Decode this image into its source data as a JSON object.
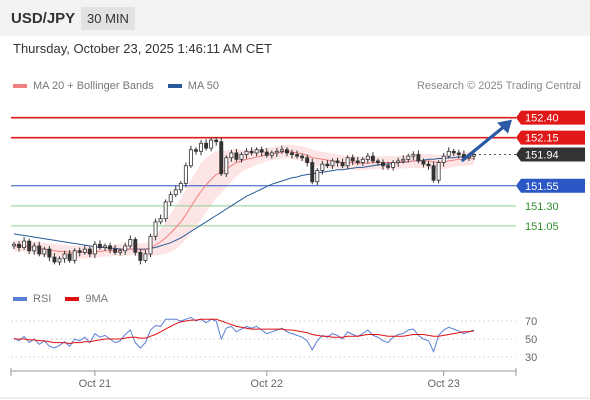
{
  "header": {
    "symbol": "USD/JPY",
    "timeframe": "30 MIN"
  },
  "datetime": "Thursday, October 23, 2025 1:46:11 AM CET",
  "legend": {
    "items": [
      {
        "label": "MA 20 + Bollinger Bands",
        "color": "#f08080"
      },
      {
        "label": "MA 50",
        "color": "#2a5a9a"
      }
    ],
    "credit": "Research © 2025 Trading Central"
  },
  "rsi_legend": {
    "items": [
      {
        "label": "RSI",
        "color": "#5b7fd6"
      },
      {
        "label": "9MA",
        "color": "#e01010"
      }
    ]
  },
  "chart_data": [
    {
      "type": "candlestick",
      "ylim": [
        150.4,
        152.62
      ],
      "x_labels": [
        {
          "label": "Oct 21",
          "index": 16
        },
        {
          "label": "Oct 22",
          "index": 50
        },
        {
          "label": "Oct 23",
          "index": 85
        }
      ],
      "levels": [
        {
          "value": 152.4,
          "label": "152.40",
          "kind": "resistance"
        },
        {
          "value": 152.15,
          "label": "152.15",
          "kind": "resistance"
        },
        {
          "value": 151.94,
          "label": "151.94",
          "kind": "last"
        },
        {
          "value": 151.55,
          "label": "151.55",
          "kind": "pivot"
        },
        {
          "value": 151.3,
          "label": "151.30",
          "kind": "support"
        },
        {
          "value": 151.05,
          "label": "151.05",
          "kind": "support"
        }
      ],
      "arrow": {
        "from": [
          151.87,
          88
        ],
        "to": [
          152.4,
          96
        ]
      },
      "close": [
        150.82,
        150.78,
        150.86,
        150.74,
        150.8,
        150.7,
        150.76,
        150.66,
        150.6,
        150.64,
        150.7,
        150.62,
        150.74,
        150.72,
        150.76,
        150.7,
        150.82,
        150.78,
        150.8,
        150.76,
        150.72,
        150.74,
        150.8,
        150.88,
        150.72,
        150.62,
        150.7,
        150.92,
        151.1,
        151.14,
        151.35,
        151.44,
        151.5,
        151.58,
        151.8,
        152.0,
        151.98,
        152.08,
        152.02,
        152.12,
        152.1,
        151.7,
        151.9,
        151.96,
        151.88,
        151.94,
        151.98,
        151.96,
        152.0,
        151.97,
        151.93,
        151.96,
        151.98,
        152.0,
        151.96,
        151.94,
        151.92,
        151.9,
        151.84,
        151.6,
        151.74,
        151.82,
        151.8,
        151.86,
        151.84,
        151.8,
        151.9,
        151.86,
        151.84,
        151.88,
        151.92,
        151.86,
        151.84,
        151.8,
        151.78,
        151.84,
        151.86,
        151.88,
        151.92,
        151.94,
        151.86,
        151.82,
        151.8,
        151.62,
        151.84,
        151.92,
        151.98,
        151.96,
        151.94,
        151.9,
        151.92,
        151.94
      ],
      "ma20": [
        150.8,
        150.8,
        150.8,
        150.79,
        150.78,
        150.77,
        150.76,
        150.75,
        150.74,
        150.73,
        150.73,
        150.72,
        150.72,
        150.72,
        150.72,
        150.72,
        150.73,
        150.73,
        150.74,
        150.74,
        150.75,
        150.75,
        150.75,
        150.76,
        150.76,
        150.75,
        150.75,
        150.77,
        150.81,
        150.85,
        150.9,
        150.96,
        151.03,
        151.1,
        151.19,
        151.29,
        151.39,
        151.48,
        151.56,
        151.63,
        151.69,
        151.72,
        151.76,
        151.8,
        151.84,
        151.86,
        151.88,
        151.89,
        151.91,
        151.92,
        151.94,
        151.95,
        151.96,
        151.97,
        151.98,
        151.97,
        151.96,
        151.95,
        151.93,
        151.9,
        151.89,
        151.88,
        151.87,
        151.86,
        151.85,
        151.84,
        151.84,
        151.84,
        151.83,
        151.83,
        151.83,
        151.84,
        151.84,
        151.84,
        151.84,
        151.84,
        151.84,
        151.85,
        151.85,
        151.86,
        151.86,
        151.86,
        151.86,
        151.85,
        151.84,
        151.85,
        151.86,
        151.87,
        151.88,
        151.88,
        151.89,
        151.89
      ],
      "ma50": [
        150.95,
        150.94,
        150.93,
        150.92,
        150.91,
        150.9,
        150.89,
        150.88,
        150.87,
        150.86,
        150.85,
        150.84,
        150.83,
        150.82,
        150.81,
        150.8,
        150.79,
        150.78,
        150.78,
        150.77,
        150.77,
        150.76,
        150.76,
        150.76,
        150.76,
        150.76,
        150.76,
        150.77,
        150.78,
        150.8,
        150.82,
        150.84,
        150.87,
        150.9,
        150.94,
        150.98,
        151.02,
        151.06,
        151.1,
        151.14,
        151.18,
        151.22,
        151.26,
        151.3,
        151.34,
        151.38,
        151.42,
        151.45,
        151.48,
        151.51,
        151.54,
        151.57,
        151.59,
        151.61,
        151.63,
        151.65,
        151.66,
        151.68,
        151.69,
        151.7,
        151.71,
        151.72,
        151.73,
        151.74,
        151.75,
        151.75,
        151.76,
        151.77,
        151.78,
        151.78,
        151.79,
        151.8,
        151.81,
        151.82,
        151.82,
        151.83,
        151.84,
        151.84,
        151.85,
        151.86,
        151.86,
        151.87,
        151.88,
        151.88,
        151.89,
        151.89,
        151.9,
        151.9,
        151.91,
        151.91,
        151.92,
        151.92
      ],
      "bb_width": [
        0.14,
        0.14,
        0.14,
        0.15,
        0.15,
        0.16,
        0.16,
        0.16,
        0.17,
        0.17,
        0.17,
        0.16,
        0.16,
        0.16,
        0.15,
        0.15,
        0.15,
        0.14,
        0.14,
        0.14,
        0.14,
        0.14,
        0.14,
        0.15,
        0.15,
        0.16,
        0.17,
        0.2,
        0.26,
        0.32,
        0.4,
        0.48,
        0.54,
        0.58,
        0.62,
        0.66,
        0.68,
        0.7,
        0.68,
        0.64,
        0.58,
        0.52,
        0.46,
        0.4,
        0.34,
        0.28,
        0.24,
        0.22,
        0.2,
        0.18,
        0.17,
        0.16,
        0.16,
        0.16,
        0.17,
        0.18,
        0.18,
        0.19,
        0.19,
        0.2,
        0.2,
        0.19,
        0.19,
        0.18,
        0.18,
        0.18,
        0.17,
        0.17,
        0.17,
        0.17,
        0.16,
        0.16,
        0.16,
        0.16,
        0.16,
        0.16,
        0.16,
        0.16,
        0.17,
        0.17,
        0.18,
        0.18,
        0.18,
        0.19,
        0.19,
        0.18,
        0.18,
        0.17,
        0.17,
        0.17,
        0.17,
        0.17
      ]
    },
    {
      "type": "line",
      "name": "RSI",
      "ylim": [
        20,
        80
      ],
      "levels": [
        70,
        50,
        30
      ],
      "series": [
        {
          "name": "RSI",
          "values": [
            51,
            48,
            53,
            46,
            50,
            44,
            48,
            42,
            40,
            43,
            47,
            42,
            50,
            48,
            52,
            46,
            56,
            52,
            54,
            50,
            46,
            48,
            55,
            60,
            46,
            40,
            46,
            60,
            65,
            64,
            72,
            72,
            72,
            70,
            72,
            74,
            70,
            72,
            68,
            72,
            70,
            50,
            62,
            64,
            58,
            61,
            64,
            62,
            64,
            60,
            56,
            58,
            60,
            62,
            58,
            56,
            54,
            52,
            48,
            38,
            48,
            54,
            52,
            56,
            54,
            50,
            58,
            55,
            53,
            56,
            60,
            54,
            52,
            48,
            46,
            52,
            55,
            56,
            60,
            61,
            54,
            50,
            48,
            36,
            54,
            60,
            63,
            61,
            59,
            56,
            58,
            60
          ]
        },
        {
          "name": "9MA",
          "values": [
            50,
            50,
            50,
            49,
            49,
            48,
            48,
            47,
            46,
            46,
            46,
            45,
            46,
            46,
            47,
            47,
            48,
            49,
            50,
            50,
            50,
            50,
            51,
            52,
            52,
            51,
            51,
            53,
            55,
            58,
            61,
            64,
            67,
            69,
            70,
            71,
            71,
            72,
            72,
            72,
            72,
            70,
            68,
            66,
            64,
            63,
            62,
            61,
            61,
            61,
            61,
            61,
            61,
            61,
            60,
            60,
            59,
            58,
            57,
            55,
            54,
            53,
            53,
            52,
            52,
            52,
            53,
            53,
            53,
            54,
            55,
            55,
            55,
            54,
            53,
            53,
            53,
            53,
            54,
            55,
            55,
            55,
            54,
            53,
            53,
            54,
            55,
            56,
            57,
            58,
            58,
            59
          ]
        }
      ],
      "x_labels": [
        {
          "label": "Oct 21",
          "index": 16
        },
        {
          "label": "Oct 22",
          "index": 50
        },
        {
          "label": "Oct 23",
          "index": 85
        }
      ]
    }
  ]
}
